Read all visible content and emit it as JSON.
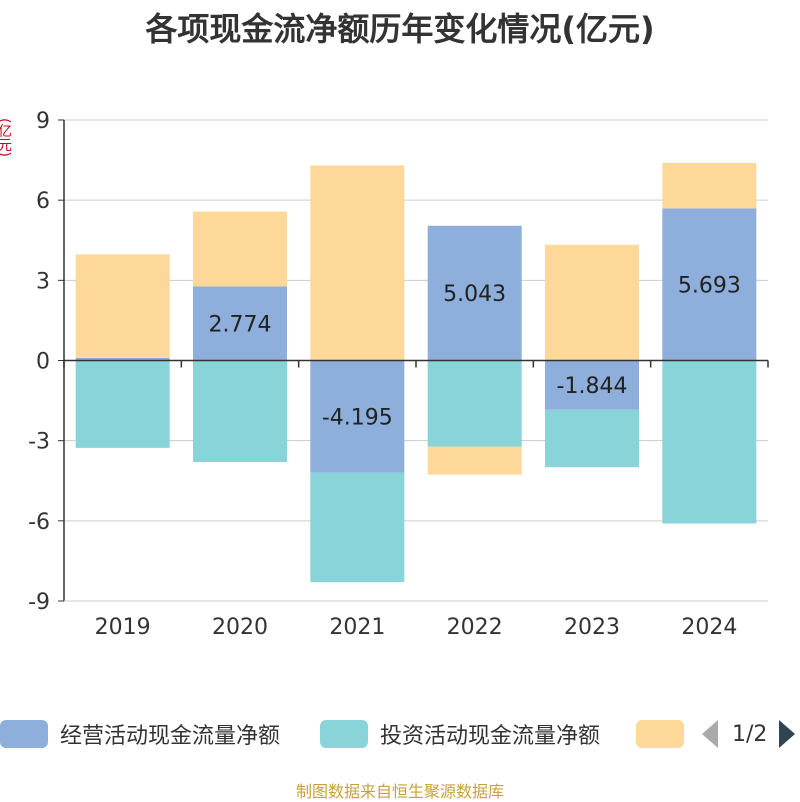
{
  "chart_data": {
    "type": "bar",
    "stacked": true,
    "title": "各项现金流净额历年变化情况(亿元)",
    "ylabel": "(亿元)",
    "categories": [
      "2019",
      "2020",
      "2021",
      "2022",
      "2023",
      "2024"
    ],
    "ylim": [
      -9,
      9
    ],
    "yticks": [
      "9",
      "6",
      "3",
      "0",
      "-3",
      "-6",
      "-9"
    ],
    "grid": true,
    "series": [
      {
        "name": "经营活动现金流量净额",
        "color": "#8eaedb",
        "values": [
          0.1,
          2.774,
          -4.195,
          5.043,
          -1.844,
          5.693
        ],
        "labels": [
          "",
          "2.774",
          "-4.195",
          "5.043",
          "-1.844",
          "5.693"
        ]
      },
      {
        "name": "投资活动现金流量净额",
        "color": "#88d4d8",
        "values": [
          -3.27,
          -3.8,
          -4.1,
          -3.22,
          -2.15,
          -6.1
        ],
        "labels": [
          "",
          "",
          "",
          "",
          "",
          ""
        ]
      },
      {
        "name": "",
        "color": "#fed898",
        "values": [
          3.87,
          2.8,
          7.3,
          -1.05,
          4.33,
          1.7
        ],
        "labels": [
          "",
          "",
          "",
          "",
          "",
          ""
        ]
      }
    ]
  },
  "legend": {
    "items": [
      {
        "label": "经营活动现金流量净额",
        "color": "#8eaedb"
      },
      {
        "label": "投资活动现金流量净额",
        "color": "#88d4d8"
      },
      {
        "label": "",
        "color": "#fed898"
      }
    ],
    "page_label": "1/2"
  },
  "source_text": "制图数据来自恒生聚源数据库"
}
